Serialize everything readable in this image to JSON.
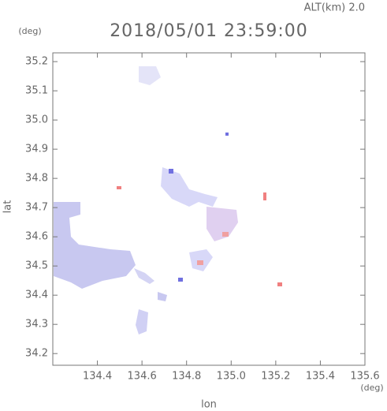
{
  "chart_data": {
    "type": "map",
    "title": "2018/05/01 23:59:00",
    "subtitle": "ALT(km) 2.0",
    "xlabel": "lon",
    "ylabel": "lat",
    "xunit": "(deg)",
    "yunit": "(deg)",
    "xlim": [
      134.2,
      135.6
    ],
    "ylim": [
      34.16,
      35.23
    ],
    "xticks": [
      134.4,
      134.6,
      134.8,
      {
        "value": 135,
        "label": "135.0"
      },
      135.2,
      135.4,
      135.6
    ],
    "yticks": [
      34.2,
      34.3,
      34.4,
      34.5,
      34.6,
      34.7,
      34.8,
      34.9,
      {
        "value": 35,
        "label": "35.0"
      },
      35.1,
      35.2
    ]
  }
}
